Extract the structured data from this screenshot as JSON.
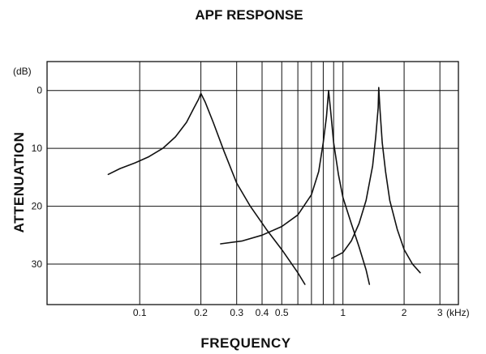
{
  "chart_data": {
    "type": "line",
    "title": "APF RESPONSE",
    "xlabel": "FREQUENCY",
    "ylabel": "ATTENUATION",
    "x_unit": "(kHz)",
    "y_unit": "(dB)",
    "x_scale": "log",
    "y_inverted": true,
    "xlim": [
      0.035,
      3.7
    ],
    "ylim": [
      -5,
      37
    ],
    "grid": true,
    "x_ticks": [
      {
        "value": 0.1,
        "label": "0.1"
      },
      {
        "value": 0.2,
        "label": "0.2"
      },
      {
        "value": 0.3,
        "label": "0.3"
      },
      {
        "value": 0.4,
        "label": "0.4"
      },
      {
        "value": 0.5,
        "label": "0.5"
      },
      {
        "value": 1,
        "label": "1"
      },
      {
        "value": 2,
        "label": "2"
      },
      {
        "value": 3,
        "label": "3"
      }
    ],
    "x_minor_grid": [
      0.6,
      0.7,
      0.8,
      0.9
    ],
    "y_ticks": [
      {
        "value": 0,
        "label": "0"
      },
      {
        "value": 10,
        "label": "10"
      },
      {
        "value": 20,
        "label": "20"
      },
      {
        "value": 30,
        "label": "30"
      }
    ],
    "series": [
      {
        "x": [
          0.07,
          0.08,
          0.095,
          0.11,
          0.13,
          0.15,
          0.17,
          0.185,
          0.195,
          0.2,
          0.21,
          0.23,
          0.26,
          0.3,
          0.35,
          0.42,
          0.5,
          0.6,
          0.65
        ],
        "y": [
          14.5,
          13.5,
          12.5,
          11.5,
          10,
          8,
          5.5,
          3,
          1.5,
          0.5,
          2,
          5.5,
          10.5,
          16,
          20,
          24,
          27.5,
          31.5,
          33.5
        ]
      },
      {
        "x": [
          0.25,
          0.32,
          0.4,
          0.5,
          0.6,
          0.7,
          0.76,
          0.8,
          0.83,
          0.85,
          0.87,
          0.9,
          0.95,
          1.0,
          1.1,
          1.2,
          1.3,
          1.35
        ],
        "y": [
          26.5,
          26,
          25,
          23.5,
          21.5,
          18,
          14,
          9,
          4.5,
          0,
          3.5,
          9,
          14.5,
          18.5,
          23,
          27,
          31,
          33.5
        ]
      },
      {
        "x": [
          0.88,
          1.0,
          1.1,
          1.2,
          1.3,
          1.4,
          1.45,
          1.49,
          1.5,
          1.52,
          1.56,
          1.62,
          1.7,
          1.85,
          2.0,
          2.2,
          2.4
        ],
        "y": [
          29,
          28,
          26,
          23,
          19,
          13,
          8,
          3,
          -0.5,
          3,
          9,
          14,
          19,
          24,
          27.5,
          30,
          31.5
        ]
      }
    ]
  }
}
